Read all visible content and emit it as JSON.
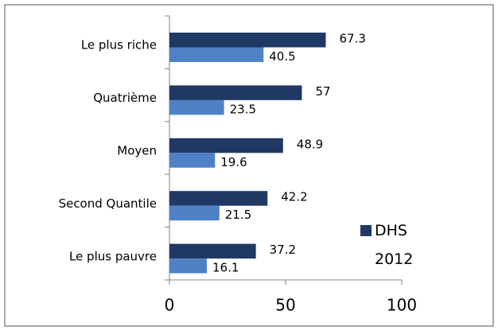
{
  "chart_data": {
    "type": "bar",
    "orientation": "horizontal",
    "categories": [
      "Le plus riche",
      "Quatrième",
      "Moyen",
      "Second Quantile",
      "Le plus pauvre"
    ],
    "series": [
      {
        "name": "DHS 2012",
        "color": "#1f3864",
        "values": [
          67.3,
          57,
          48.9,
          42.2,
          37.2
        ]
      },
      {
        "color": "#4f81c7",
        "values": [
          40.5,
          23.5,
          19.6,
          21.5,
          16.1
        ]
      }
    ],
    "xlim": [
      0,
      100
    ],
    "xticks": [
      0,
      50,
      100
    ],
    "legend": "right"
  }
}
